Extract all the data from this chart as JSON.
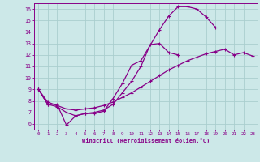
{
  "xlabel": "Windchill (Refroidissement éolien,°C)",
  "bg_color": "#cce8e8",
  "grid_color": "#aacece",
  "line_color": "#880088",
  "xlim": [
    -0.5,
    23.5
  ],
  "ylim": [
    5.5,
    16.5
  ],
  "xticks": [
    0,
    1,
    2,
    3,
    4,
    5,
    6,
    7,
    8,
    9,
    10,
    11,
    12,
    13,
    14,
    15,
    16,
    17,
    18,
    19,
    20,
    21,
    22,
    23
  ],
  "yticks": [
    6,
    7,
    8,
    9,
    10,
    11,
    12,
    13,
    14,
    15,
    16
  ],
  "line1_x": [
    0,
    1,
    2,
    3,
    4,
    5,
    6,
    7,
    8,
    9,
    10,
    11,
    13,
    14,
    15,
    16,
    17,
    18,
    19
  ],
  "line1_y": [
    9.0,
    7.7,
    7.7,
    5.9,
    6.7,
    6.9,
    6.9,
    7.1,
    8.2,
    9.5,
    11.1,
    11.5,
    14.2,
    15.4,
    16.2,
    16.2,
    16.0,
    15.3,
    14.4
  ],
  "line2_x": [
    0,
    1,
    2,
    3,
    4,
    5,
    6,
    7,
    8,
    9,
    10,
    11,
    12,
    13,
    14,
    15
  ],
  "line2_y": [
    9.0,
    7.7,
    7.5,
    7.0,
    6.7,
    6.9,
    7.0,
    7.2,
    7.7,
    8.7,
    9.7,
    11.0,
    12.9,
    13.0,
    12.2,
    12.0
  ],
  "line3_x": [
    0,
    1,
    2,
    3,
    4,
    5,
    6,
    7,
    8,
    9,
    10,
    11,
    12,
    13,
    14,
    15,
    16,
    17,
    18,
    19,
    20,
    21,
    22,
    23
  ],
  "line3_y": [
    9.0,
    7.9,
    7.6,
    7.3,
    7.2,
    7.3,
    7.4,
    7.6,
    7.9,
    8.3,
    8.7,
    9.2,
    9.7,
    10.2,
    10.7,
    11.1,
    11.5,
    11.8,
    12.1,
    12.3,
    12.5,
    12.0,
    12.2,
    11.9
  ]
}
